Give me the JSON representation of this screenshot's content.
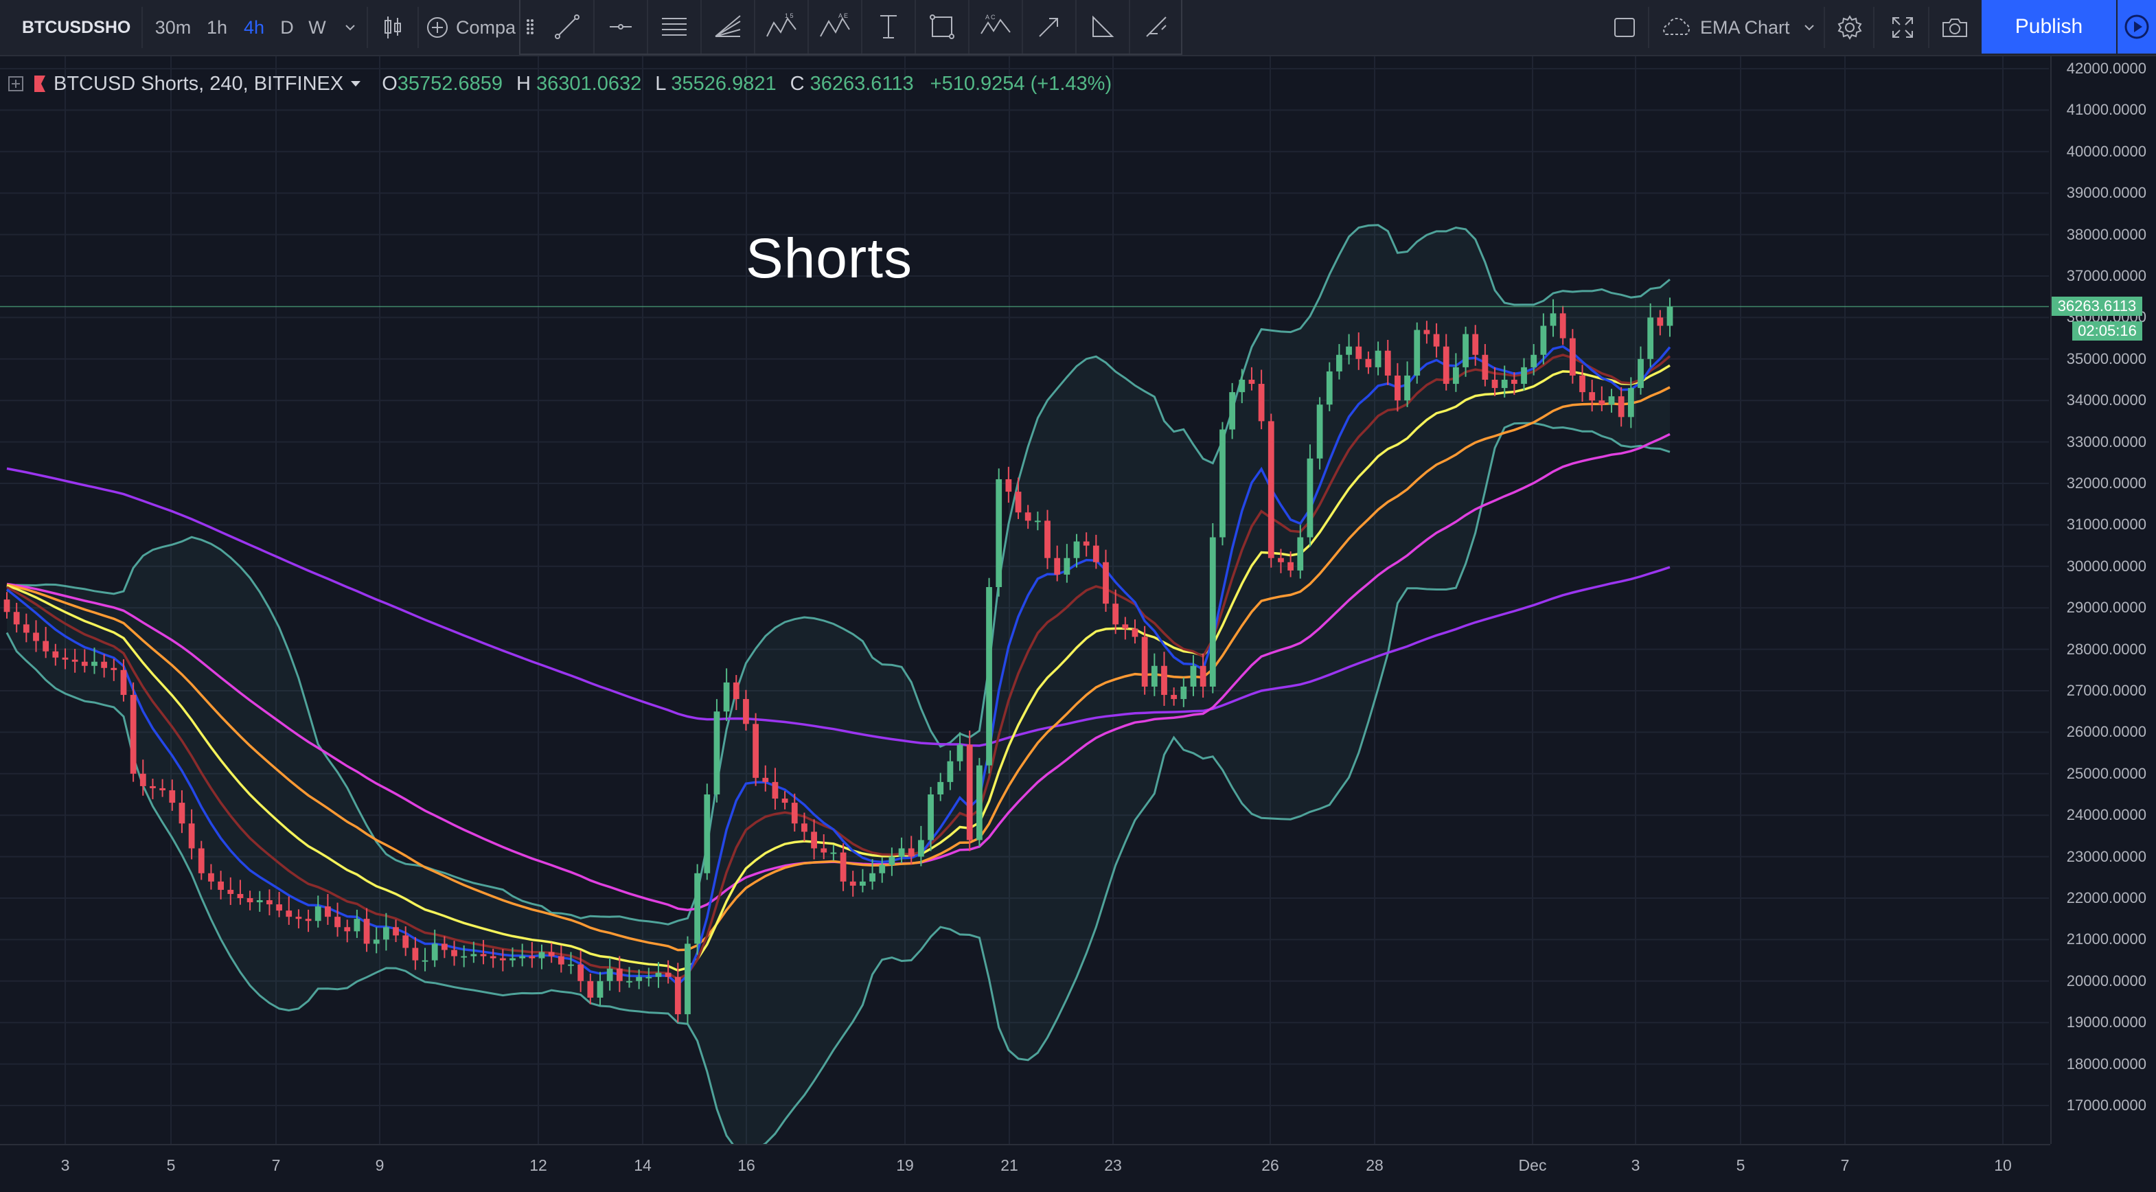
{
  "toolbar": {
    "symbol": "BTCUSDSHO",
    "timeframes": [
      "30m",
      "1h",
      "4h",
      "D",
      "W"
    ],
    "active_timeframe": "4h",
    "compare_label": "Compa",
    "layout_name": "EMA Chart",
    "publish_label": "Publish",
    "drawing_tools": [
      "trend-line",
      "horizontal-ray",
      "pitchfork",
      "gann-fan",
      "xabcd-pattern",
      "abcd-pattern",
      "price-range",
      "rectangle",
      "head-and-shoulders",
      "arrow",
      "angle",
      "brush"
    ],
    "accent_color": "#2962ff"
  },
  "legend": {
    "symbol_line": "BTCUSD Shorts, 240, BITFINEX",
    "open_label": "O",
    "open": "35752.6859",
    "high_label": "H",
    "high": "36301.0632",
    "low_label": "L",
    "low": "35526.9821",
    "close_label": "C",
    "close": "36263.6113",
    "change": "+510.9254 (+1.43%)",
    "up_color": "#53b987",
    "down_color": "#eb4d5c"
  },
  "chart_title": "Shorts",
  "price_axis": {
    "ticks": [
      "42000.0000",
      "41000.0000",
      "40000.0000",
      "39000.0000",
      "38000.0000",
      "37000.0000",
      "36000.0000",
      "35000.0000",
      "34000.0000",
      "33000.0000",
      "32000.0000",
      "31000.0000",
      "30000.0000",
      "29000.0000",
      "28000.0000",
      "27000.0000",
      "26000.0000",
      "25000.0000",
      "24000.0000",
      "23000.0000",
      "22000.0000",
      "21000.0000",
      "20000.0000",
      "19000.0000",
      "18000.0000",
      "17000.0000"
    ],
    "last_price": "36263.6113",
    "countdown": "02:05:16"
  },
  "time_axis": {
    "ticks": [
      "3",
      "5",
      "7",
      "9",
      "12",
      "14",
      "16",
      "19",
      "21",
      "23",
      "26",
      "28",
      "Dec",
      "3",
      "5",
      "7",
      "10"
    ]
  },
  "chart_data": {
    "type": "line",
    "ylim": [
      16000,
      42500
    ],
    "close": [
      28900,
      28600,
      28400,
      28200,
      27950,
      27800,
      27750,
      27700,
      27600,
      27700,
      27550,
      27500,
      26900,
      25000,
      24700,
      24650,
      24600,
      24300,
      23800,
      23200,
      22600,
      22400,
      22200,
      22100,
      22000,
      21900,
      21950,
      21850,
      21700,
      21550,
      21500,
      21450,
      21800,
      21550,
      21300,
      21200,
      21500,
      20900,
      21000,
      21300,
      21100,
      20800,
      20500,
      20500,
      20900,
      20750,
      20600,
      20600,
      20650,
      20600,
      20550,
      20500,
      20550,
      20600,
      20550,
      20700,
      20600,
      20400,
      20400,
      20000,
      19600,
      20000,
      20300,
      20000,
      20000,
      20100,
      20100,
      20200,
      20100,
      19200,
      20900,
      22600,
      24500,
      26500,
      27200,
      26800,
      26200,
      24900,
      24800,
      24400,
      24300,
      23800,
      23600,
      23200,
      23100,
      23100,
      22400,
      22300,
      22400,
      22600,
      22800,
      23000,
      23200,
      23000,
      23400,
      24500,
      24800,
      25300,
      25700,
      23400,
      25200,
      29500,
      32100,
      31800,
      31300,
      31100,
      31100,
      30200,
      29800,
      30200,
      30600,
      30500,
      30100,
      29100,
      28600,
      28500,
      28300,
      27100,
      27600,
      26900,
      26800,
      27100,
      27600,
      27100,
      30700,
      33300,
      34200,
      34500,
      34400,
      33500,
      30200,
      30100,
      29900,
      30700,
      32600,
      33900,
      34700,
      35100,
      35300,
      35000,
      34800,
      35200,
      34600,
      34000,
      34600,
      35700,
      35600,
      35300,
      34400,
      34800,
      35600,
      35100,
      34500,
      34300,
      34500,
      34400,
      34800,
      35100,
      35800,
      36100,
      35500,
      34600,
      34200,
      34000,
      33900,
      34100,
      33600,
      34300,
      35000,
      36000,
      35800,
      36260
    ],
    "series": [
      {
        "name": "EMA 8",
        "color": "#2447e8"
      },
      {
        "name": "EMA 13",
        "color": "#8a2b2b"
      },
      {
        "name": "EMA 21",
        "color": "#f5f35a"
      },
      {
        "name": "EMA 34",
        "color": "#ff9a33"
      },
      {
        "name": "EMA 55",
        "color": "#e040e0"
      },
      {
        "name": "SMA 200",
        "color": "#9b35f0"
      },
      {
        "name": "Bollinger Bands",
        "color": "#4fa39a"
      }
    ],
    "grid": true
  }
}
